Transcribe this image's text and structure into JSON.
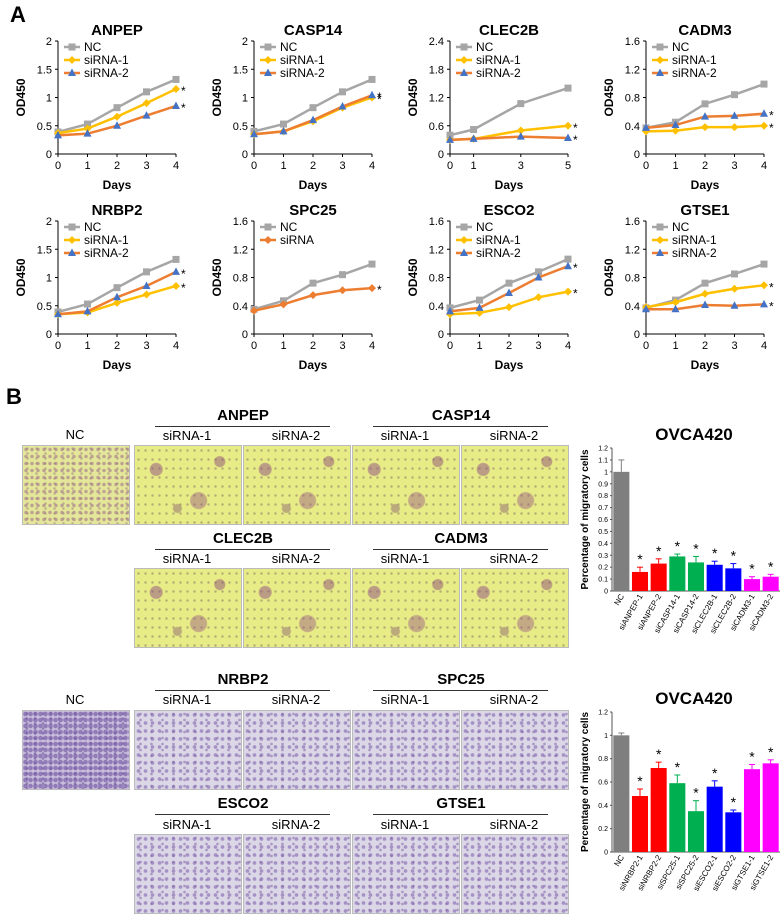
{
  "panel_a_label": "A",
  "panel_b_label": "B",
  "chart_data": [
    {
      "type": "line",
      "title": "ANPEP",
      "xlabel": "Days",
      "ylabel": "OD450",
      "x": [
        0,
        1,
        2,
        3,
        4
      ],
      "ylim": [
        0,
        2
      ],
      "yticks": [
        "0",
        "0.5",
        "1",
        "1.5",
        "2"
      ],
      "xticks": [
        "0",
        "1",
        "2",
        "3",
        "4"
      ],
      "series": [
        {
          "name": "NC",
          "values": [
            0.39,
            0.53,
            0.82,
            1.1,
            1.32
          ],
          "color": "#a6a6a6",
          "marker": "square"
        },
        {
          "name": "siRNA-1",
          "values": [
            0.37,
            0.45,
            0.66,
            0.9,
            1.15
          ],
          "color": "#ffc000",
          "marker": "diamond"
        },
        {
          "name": "siRNA-2",
          "values": [
            0.33,
            0.36,
            0.5,
            0.68,
            0.85
          ],
          "color": "#ed7d31",
          "marker": "triangle"
        }
      ],
      "sig": [
        "*",
        "*"
      ]
    },
    {
      "type": "line",
      "title": "CASP14",
      "xlabel": "Days",
      "ylabel": "OD450",
      "x": [
        0,
        1,
        2,
        3,
        4
      ],
      "ylim": [
        0,
        2
      ],
      "yticks": [
        "0",
        "0.5",
        "1",
        "1.5",
        "2"
      ],
      "xticks": [
        "0",
        "1",
        "2",
        "3",
        "4"
      ],
      "series": [
        {
          "name": "NC",
          "values": [
            0.4,
            0.53,
            0.82,
            1.1,
            1.32
          ],
          "color": "#a6a6a6",
          "marker": "square"
        },
        {
          "name": "siRNA-1",
          "values": [
            0.35,
            0.4,
            0.58,
            0.82,
            1.0
          ],
          "color": "#ffc000",
          "marker": "diamond"
        },
        {
          "name": "siRNA-2",
          "values": [
            0.35,
            0.4,
            0.6,
            0.84,
            1.04
          ],
          "color": "#ed7d31",
          "marker": "triangle"
        }
      ],
      "sig": [
        "*",
        "*"
      ]
    },
    {
      "type": "line",
      "title": "CLEC2B",
      "xlabel": "Days",
      "ylabel": "OD450",
      "x": [
        0,
        1,
        3,
        5
      ],
      "ylim": [
        0,
        2.4
      ],
      "yticks": [
        "0",
        "0.6",
        "1.2",
        "1.8",
        "2.4"
      ],
      "xticks": [
        "0",
        "1",
        "3",
        "5"
      ],
      "series": [
        {
          "name": "NC",
          "values": [
            0.4,
            0.52,
            1.07,
            1.4
          ],
          "color": "#a6a6a6",
          "marker": "square"
        },
        {
          "name": "siRNA-1",
          "values": [
            0.3,
            0.32,
            0.5,
            0.6
          ],
          "color": "#ffc000",
          "marker": "diamond"
        },
        {
          "name": "siRNA-2",
          "values": [
            0.3,
            0.32,
            0.37,
            0.34
          ],
          "color": "#ed7d31",
          "marker": "triangle"
        }
      ],
      "sig": [
        "*",
        "*"
      ]
    },
    {
      "type": "line",
      "title": "CADM3",
      "xlabel": "Days",
      "ylabel": "OD450",
      "x": [
        0,
        1,
        2,
        3,
        4
      ],
      "ylim": [
        0,
        1.6
      ],
      "yticks": [
        "0",
        "0.4",
        "0.8",
        "1.2",
        "1.6"
      ],
      "xticks": [
        "0",
        "1",
        "2",
        "3",
        "4"
      ],
      "series": [
        {
          "name": "NC",
          "values": [
            0.37,
            0.45,
            0.71,
            0.84,
            0.99
          ],
          "color": "#a6a6a6",
          "marker": "square"
        },
        {
          "name": "siRNA-1",
          "values": [
            0.32,
            0.33,
            0.38,
            0.38,
            0.4
          ],
          "color": "#ffc000",
          "marker": "diamond"
        },
        {
          "name": "siRNA-2",
          "values": [
            0.37,
            0.41,
            0.53,
            0.54,
            0.57
          ],
          "color": "#ed7d31",
          "marker": "triangle"
        }
      ],
      "sig": [
        "*",
        "*"
      ]
    },
    {
      "type": "line",
      "title": "NRBP2",
      "xlabel": "Days",
      "ylabel": "OD450",
      "x": [
        0,
        1,
        2,
        3,
        4
      ],
      "ylim": [
        0,
        2
      ],
      "yticks": [
        "0",
        "0.5",
        "1",
        "1.5",
        "2"
      ],
      "xticks": [
        "0",
        "1",
        "2",
        "3",
        "4"
      ],
      "series": [
        {
          "name": "NC",
          "values": [
            0.39,
            0.53,
            0.82,
            1.1,
            1.32
          ],
          "color": "#a6a6a6",
          "marker": "square"
        },
        {
          "name": "siRNA-1",
          "values": [
            0.35,
            0.38,
            0.55,
            0.7,
            0.85
          ],
          "color": "#ffc000",
          "marker": "diamond"
        },
        {
          "name": "siRNA-2",
          "values": [
            0.35,
            0.4,
            0.65,
            0.85,
            1.1
          ],
          "color": "#ed7d31",
          "marker": "triangle"
        }
      ],
      "sig": [
        "*",
        "*"
      ]
    },
    {
      "type": "line",
      "title": "SPC25",
      "xlabel": "Days",
      "ylabel": "OD450",
      "x": [
        0,
        1,
        2,
        3,
        4
      ],
      "ylim": [
        0,
        1.6
      ],
      "yticks": [
        "0",
        "0.4",
        "0.8",
        "1.2",
        "1.6"
      ],
      "xticks": [
        "0",
        "1",
        "2",
        "3",
        "4"
      ],
      "series": [
        {
          "name": "NC",
          "values": [
            0.35,
            0.47,
            0.72,
            0.84,
            0.99
          ],
          "color": "#a6a6a6",
          "marker": "square"
        },
        {
          "name": "siRNA",
          "values": [
            0.33,
            0.42,
            0.55,
            0.62,
            0.65
          ],
          "color": "#ed7d31",
          "marker": "diamond"
        }
      ],
      "sig": [
        "*"
      ]
    },
    {
      "type": "line",
      "title": "ESCO2",
      "xlabel": "Days",
      "ylabel": "OD450",
      "x": [
        0,
        1,
        2,
        3,
        4
      ],
      "ylim": [
        0,
        1.6
      ],
      "yticks": [
        "0",
        "0.4",
        "0.8",
        "1.2",
        "1.6"
      ],
      "xticks": [
        "0",
        "1",
        "2",
        "3",
        "4"
      ],
      "series": [
        {
          "name": "NC",
          "values": [
            0.37,
            0.48,
            0.72,
            0.88,
            1.06
          ],
          "color": "#a6a6a6",
          "marker": "square"
        },
        {
          "name": "siRNA-1",
          "values": [
            0.28,
            0.3,
            0.38,
            0.52,
            0.6
          ],
          "color": "#ffc000",
          "marker": "diamond"
        },
        {
          "name": "siRNA-2",
          "values": [
            0.32,
            0.37,
            0.58,
            0.8,
            0.96
          ],
          "color": "#ed7d31",
          "marker": "triangle"
        }
      ],
      "sig": [
        "*",
        "*"
      ]
    },
    {
      "type": "line",
      "title": "GTSE1",
      "xlabel": "Days",
      "ylabel": "OD450",
      "x": [
        0,
        1,
        2,
        3,
        4
      ],
      "ylim": [
        0,
        1.6
      ],
      "yticks": [
        "0",
        "0.4",
        "0.8",
        "1.2",
        "1.6"
      ],
      "xticks": [
        "0",
        "1",
        "2",
        "3",
        "4"
      ],
      "series": [
        {
          "name": "NC",
          "values": [
            0.37,
            0.48,
            0.72,
            0.85,
            0.99
          ],
          "color": "#a6a6a6",
          "marker": "square"
        },
        {
          "name": "siRNA-1",
          "values": [
            0.38,
            0.45,
            0.57,
            0.64,
            0.69
          ],
          "color": "#ffc000",
          "marker": "diamond"
        },
        {
          "name": "siRNA-2",
          "values": [
            0.35,
            0.35,
            0.41,
            0.4,
            0.42
          ],
          "color": "#ed7d31",
          "marker": "triangle"
        }
      ],
      "sig": [
        "*",
        "*"
      ]
    },
    {
      "type": "bar",
      "title": "OVCA420",
      "ylabel": "Percentage of migratory cells",
      "ylim": [
        0,
        1.2
      ],
      "yticks": [
        "0",
        "0.1",
        "0.2",
        "0.3",
        "0.4",
        "0.5",
        "0.6",
        "0.7",
        "0.8",
        "0.9",
        "1",
        "1.1",
        "1.2"
      ],
      "categories": [
        "NC",
        "siANPEP-1",
        "siANPEP-2",
        "siCASP14-1",
        "siCASP14-2",
        "siCLEC2B-1",
        "siCLEC2B-2",
        "siCADM3-1",
        "siCADM3-2"
      ],
      "values": [
        1.0,
        0.16,
        0.23,
        0.29,
        0.24,
        0.22,
        0.19,
        0.1,
        0.12
      ],
      "errors": [
        0.1,
        0.04,
        0.04,
        0.02,
        0.05,
        0.03,
        0.04,
        0.02,
        0.02
      ],
      "colors": [
        "#7f7f7f",
        "#ff0000",
        "#ff0000",
        "#00b050",
        "#00b050",
        "#0000ff",
        "#0000ff",
        "#ff00ff",
        "#ff00ff"
      ],
      "sig": [
        "",
        "*",
        "*",
        "*",
        "*",
        "*",
        "*",
        "*",
        "*"
      ]
    },
    {
      "type": "bar",
      "title": "OVCA420",
      "ylabel": "Percentage of migratory cells",
      "ylim": [
        0,
        1.2
      ],
      "yticks": [
        "0",
        "0.2",
        "0.4",
        "0.6",
        "0.8",
        "1",
        "1.2"
      ],
      "categories": [
        "NC",
        "siNRBP2-1",
        "siNRBP2-2",
        "siSPC25-1",
        "siSPC25-2",
        "siESCO2-1",
        "siESCO2-2",
        "siGTSE1-1",
        "siGTSE1-2"
      ],
      "values": [
        1.0,
        0.48,
        0.72,
        0.59,
        0.35,
        0.56,
        0.34,
        0.71,
        0.76
      ],
      "errors": [
        0.02,
        0.06,
        0.05,
        0.07,
        0.09,
        0.05,
        0.02,
        0.04,
        0.03
      ],
      "colors": [
        "#7f7f7f",
        "#ff0000",
        "#ff0000",
        "#00b050",
        "#00b050",
        "#0000ff",
        "#0000ff",
        "#ff00ff",
        "#ff00ff"
      ],
      "sig": [
        "",
        "*",
        "*",
        "*",
        "*",
        "*",
        "*",
        "*",
        "*"
      ]
    }
  ],
  "migration": {
    "nc_label": "NC",
    "groups": [
      {
        "gene": "ANPEP",
        "sub1": "siRNA-1",
        "sub2": "siRNA-2"
      },
      {
        "gene": "CASP14",
        "sub1": "siRNA-1",
        "sub2": "siRNA-2"
      },
      {
        "gene": "CLEC2B",
        "sub1": "siRNA-1",
        "sub2": "siRNA-2"
      },
      {
        "gene": "CADM3",
        "sub1": "siRNA-1",
        "sub2": "siRNA-2"
      },
      {
        "gene": "NRBP2",
        "sub1": "siRNA-1",
        "sub2": "siRNA-2"
      },
      {
        "gene": "SPC25",
        "sub1": "siRNA-1",
        "sub2": "siRNA-2"
      },
      {
        "gene": "ESCO2",
        "sub1": "siRNA-1",
        "sub2": "siRNA-2"
      },
      {
        "gene": "GTSE1",
        "sub1": "siRNA-1",
        "sub2": "siRNA-2"
      }
    ]
  }
}
